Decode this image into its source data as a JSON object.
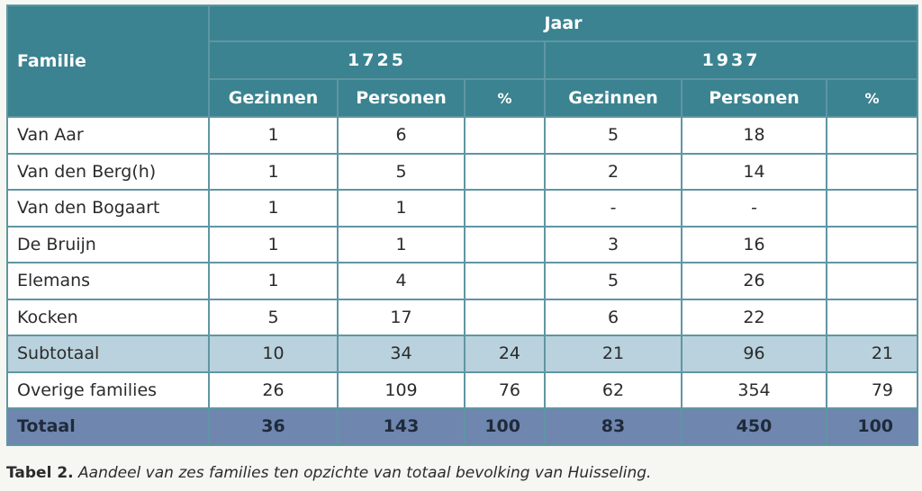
{
  "header": {
    "familie": "Familie",
    "jaar": "Jaar",
    "years": [
      "1725",
      "1937"
    ],
    "subheaders": [
      "Gezinnen",
      "Personen",
      "%",
      "Gezinnen",
      "Personen",
      "%"
    ]
  },
  "rows": [
    {
      "name": "Van Aar",
      "cells": [
        "1",
        "6",
        "",
        "5",
        "18",
        ""
      ]
    },
    {
      "name": "Van den Berg(h)",
      "cells": [
        "1",
        "5",
        "",
        "2",
        "14",
        ""
      ]
    },
    {
      "name": "Van den Bogaart",
      "cells": [
        "1",
        "1",
        "",
        "-",
        "-",
        ""
      ]
    },
    {
      "name": "De Bruijn",
      "cells": [
        "1",
        "1",
        "",
        "3",
        "16",
        ""
      ]
    },
    {
      "name": "Elemans",
      "cells": [
        "1",
        "4",
        "",
        "5",
        "26",
        ""
      ]
    },
    {
      "name": "Kocken",
      "cells": [
        "5",
        "17",
        "",
        "6",
        "22",
        ""
      ]
    },
    {
      "name": "Subtotaal",
      "cells": [
        "10",
        "34",
        "24",
        "21",
        "96",
        "21"
      ]
    },
    {
      "name": "Overige families",
      "cells": [
        "26",
        "109",
        "76",
        "62",
        "354",
        "79"
      ]
    },
    {
      "name": "Totaal",
      "cells": [
        "36",
        "143",
        "100",
        "83",
        "450",
        "100"
      ]
    }
  ],
  "caption": {
    "label": "Tabel 2.",
    "text": "Aandeel van zes families ten opzichte van totaal bevolking van Huisseling."
  },
  "colors": {
    "header": "#3b8390",
    "subtotal": "#b9d2dd",
    "total": "#6f86af",
    "border": "#5f96a3"
  }
}
